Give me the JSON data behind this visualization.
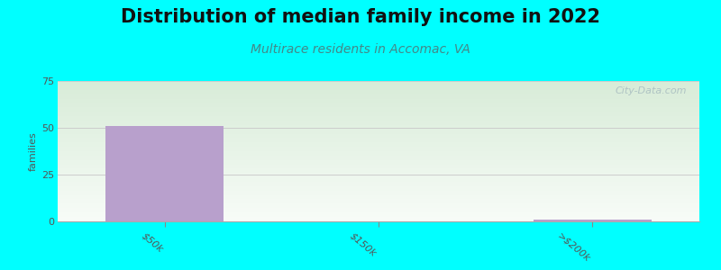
{
  "title": "Distribution of median family income in 2022",
  "subtitle": "Multirace residents in Accomac, VA",
  "categories": [
    "$50k",
    "$150k",
    ">$200k"
  ],
  "values": [
    51,
    0,
    1
  ],
  "bar_color": "#b8a0cc",
  "background_color": "#00ffff",
  "plot_bg_top": "#d8ecd8",
  "plot_bg_bottom": "#f8fcf8",
  "title_fontsize": 15,
  "subtitle_fontsize": 10,
  "subtitle_color": "#448888",
  "ylabel": "families",
  "ylim": [
    0,
    75
  ],
  "yticks": [
    0,
    25,
    50,
    75
  ],
  "watermark": "City-Data.com",
  "watermark_color": "#a8bcc0",
  "grid_color": "#cccccc"
}
